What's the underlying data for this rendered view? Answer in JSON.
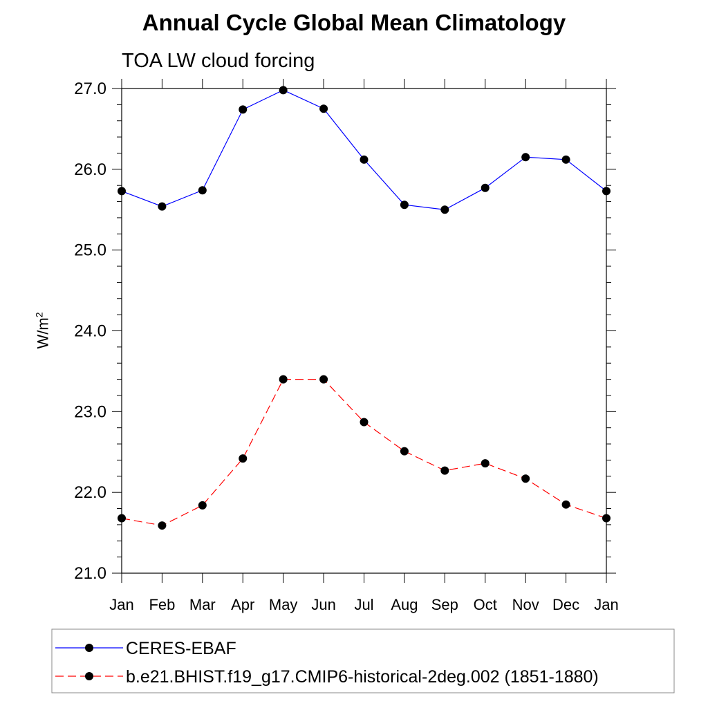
{
  "chart_data": {
    "type": "line",
    "title": "Annual Cycle Global Mean Climatology",
    "subtitle": "TOA LW cloud forcing",
    "ylabel": "W/m",
    "ylabel_sup": "2",
    "xlabel": "",
    "categories": [
      "Jan",
      "Feb",
      "Mar",
      "Apr",
      "May",
      "Jun",
      "Jul",
      "Aug",
      "Sep",
      "Oct",
      "Nov",
      "Dec",
      "Jan"
    ],
    "ylim": [
      21.0,
      27.0
    ],
    "yticks": [
      "21.0",
      "22.0",
      "23.0",
      "24.0",
      "25.0",
      "26.0",
      "27.0"
    ],
    "grid": false,
    "legend_position": "bottom",
    "series": [
      {
        "name": "CERES-EBAF",
        "color": "#0000ff",
        "dash": "solid",
        "values": [
          25.73,
          25.54,
          25.74,
          26.74,
          26.98,
          26.75,
          26.12,
          25.56,
          25.5,
          25.77,
          26.15,
          26.12,
          25.73
        ]
      },
      {
        "name": "b.e21.BHIST.f19_g17.CMIP6-historical-2deg.002 (1851-1880)",
        "color": "#ff0000",
        "dash": "dashed",
        "values": [
          21.68,
          21.59,
          21.84,
          22.42,
          23.4,
          23.4,
          22.87,
          22.51,
          22.27,
          22.36,
          22.17,
          21.85,
          21.68
        ]
      }
    ]
  }
}
